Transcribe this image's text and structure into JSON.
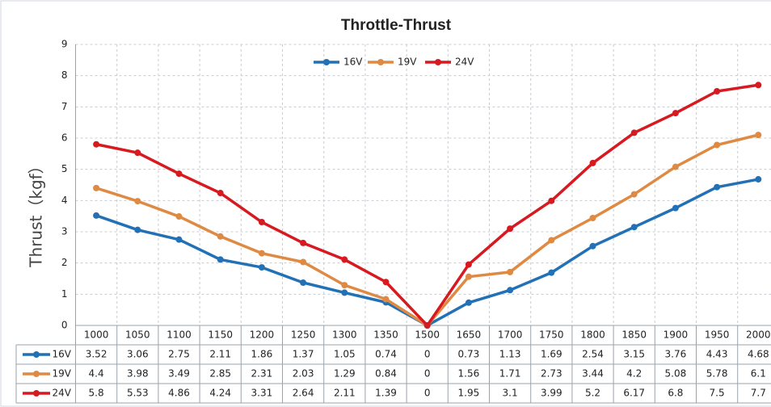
{
  "chart_data": {
    "type": "line",
    "title": "Throttle-Thrust",
    "y_label": "Thrust（kgf）",
    "categories": [
      "1000",
      "1050",
      "1100",
      "1150",
      "1200",
      "1250",
      "1300",
      "1350",
      "1500",
      "1650",
      "1700",
      "1750",
      "1800",
      "1850",
      "1900",
      "1950",
      "2000"
    ],
    "series": [
      {
        "name": "16V",
        "color": "#2270b5",
        "values": [
          3.52,
          3.06,
          2.75,
          2.11,
          1.86,
          1.37,
          1.05,
          0.74,
          0,
          0.73,
          1.13,
          1.69,
          2.54,
          3.15,
          3.76,
          4.43,
          4.68
        ]
      },
      {
        "name": "19V",
        "color": "#df8a43",
        "values": [
          4.4,
          3.98,
          3.49,
          2.85,
          2.31,
          2.03,
          1.29,
          0.84,
          0,
          1.56,
          1.71,
          2.73,
          3.44,
          4.2,
          5.08,
          5.78,
          6.1
        ]
      },
      {
        "name": "24V",
        "color": "#d71920",
        "values": [
          5.8,
          5.53,
          4.86,
          4.24,
          3.31,
          2.64,
          2.11,
          1.39,
          0,
          1.95,
          3.1,
          3.99,
          5.2,
          6.17,
          6.8,
          7.5,
          7.7
        ]
      }
    ],
    "ylim": [
      0,
      9
    ],
    "yticks": [
      0,
      1,
      2,
      3,
      4,
      5,
      6,
      7,
      8,
      9
    ],
    "grid": true,
    "legend": "top",
    "data_table": true
  }
}
